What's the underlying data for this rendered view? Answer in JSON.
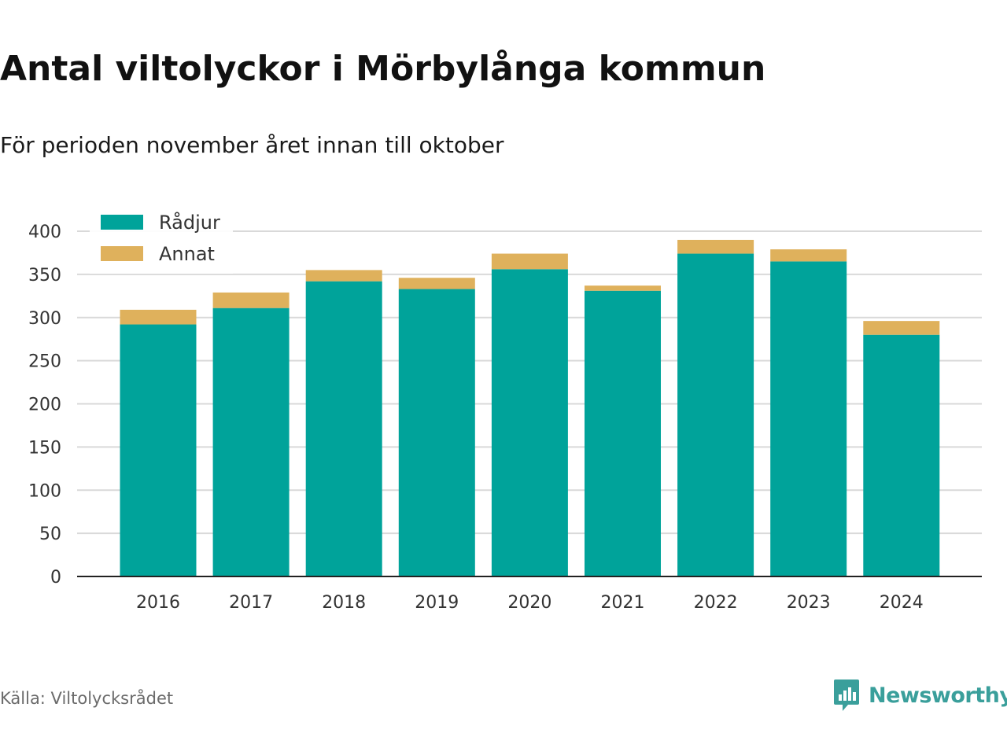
{
  "title": "Antal viltolyckor i Mörbylånga kommun",
  "subtitle": "För perioden november året innan till oktober",
  "source": "Källa: Viltolycksrådet",
  "brand": {
    "name": "Newsworthy",
    "icon": "bar-chart-speech-bubble-icon",
    "color": "#3a9f9b"
  },
  "colors": {
    "radjur": "#00a39a",
    "annat": "#dfb15c",
    "grid": "#d9d9d9",
    "axis": "#222222",
    "text": "#333333"
  },
  "chart_data": {
    "type": "bar",
    "stacked": true,
    "categories": [
      "2016",
      "2017",
      "2018",
      "2019",
      "2020",
      "2021",
      "2022",
      "2023",
      "2024"
    ],
    "series": [
      {
        "name": "Rådjur",
        "values": [
          292,
          311,
          342,
          333,
          356,
          331,
          374,
          365,
          280
        ]
      },
      {
        "name": "Annat",
        "values": [
          17,
          18,
          13,
          13,
          18,
          6,
          16,
          14,
          16
        ]
      }
    ],
    "ylim": [
      0,
      400
    ],
    "yticks": [
      "0",
      "50",
      "100",
      "150",
      "200",
      "250",
      "300",
      "350",
      "400"
    ],
    "xlabel": "",
    "ylabel": "",
    "grid": true,
    "legend": "top-left"
  }
}
